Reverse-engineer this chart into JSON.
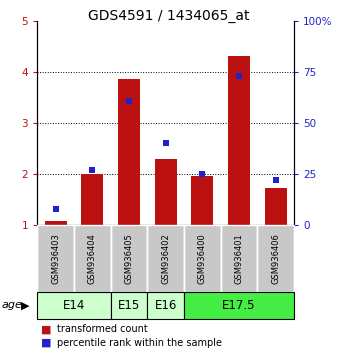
{
  "title": "GDS4591 / 1434065_at",
  "samples": [
    "GSM936403",
    "GSM936404",
    "GSM936405",
    "GSM936402",
    "GSM936400",
    "GSM936401",
    "GSM936406"
  ],
  "transformed_count": [
    1.08,
    2.0,
    3.87,
    2.3,
    1.95,
    4.32,
    1.72
  ],
  "percentile_rank": [
    8,
    27,
    61,
    40,
    25,
    73,
    22
  ],
  "bar_bottom": 1.0,
  "ylim_left": [
    1,
    5
  ],
  "ylim_right": [
    0,
    100
  ],
  "yticks_left": [
    1,
    2,
    3,
    4,
    5
  ],
  "yticks_right": [
    0,
    25,
    50,
    75,
    100
  ],
  "ytick_labels_left": [
    "1",
    "2",
    "3",
    "4",
    "5"
  ],
  "ytick_labels_right": [
    "0",
    "25",
    "50",
    "75",
    "100%"
  ],
  "bar_color": "#bb1111",
  "percentile_color": "#2222cc",
  "age_groups": [
    {
      "label": "E14",
      "samples": [
        0,
        1
      ],
      "color": "#ccffcc"
    },
    {
      "label": "E15",
      "samples": [
        2
      ],
      "color": "#ccffcc"
    },
    {
      "label": "E16",
      "samples": [
        3
      ],
      "color": "#ccffcc"
    },
    {
      "label": "E17.5",
      "samples": [
        4,
        5,
        6
      ],
      "color": "#44ee44"
    }
  ],
  "sample_bg_color": "#c8c8c8",
  "legend_red_label": "transformed count",
  "legend_blue_label": "percentile rank within the sample",
  "age_label": "age",
  "title_fontsize": 10,
  "tick_fontsize": 7.5,
  "label_fontsize": 7.5
}
